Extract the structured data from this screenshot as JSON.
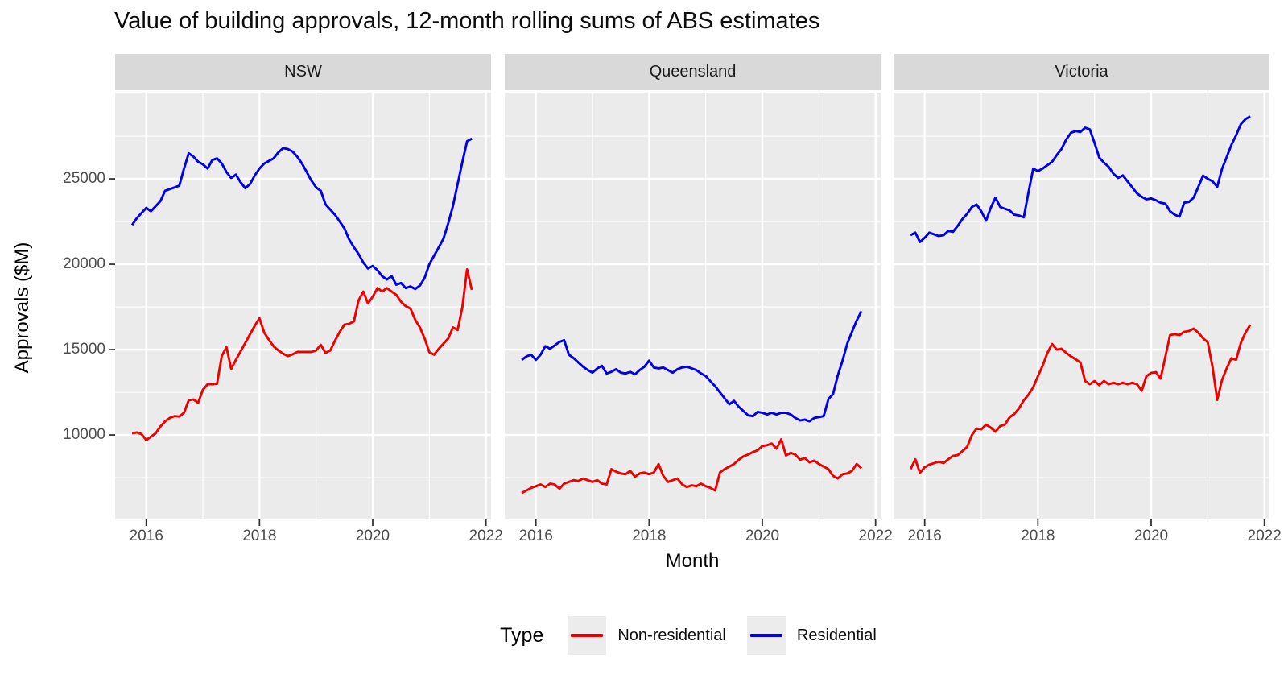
{
  "title": "Value of building approvals, 12-month rolling sums of ABS estimates",
  "chart_data": {
    "type": "line",
    "title": "Value of building approvals, 12-month rolling sums of ABS estimates",
    "xlabel": "Month",
    "ylabel": "Approvals ($M)",
    "facets": [
      "NSW",
      "Queensland",
      "Victoria"
    ],
    "grid": "on",
    "panel_background": "#ebebeb",
    "strip_background": "#d9d9d9",
    "gridline_color": "#ffffff",
    "legend": {
      "title": "Type",
      "position": "bottom",
      "entries": [
        {
          "label": "Non-residential",
          "color": "#ee0000"
        },
        {
          "label": "Residential",
          "color": "#0000e6"
        }
      ]
    },
    "x_axis": {
      "domain": [
        2015.45,
        2022.09
      ],
      "ticks": [
        2016,
        2018,
        2020,
        2022
      ],
      "tick_labels": [
        "2016",
        "2018",
        "2020",
        "2022"
      ],
      "minor_ticks": [
        2017,
        2019,
        2021
      ]
    },
    "y_axis": {
      "domain": [
        5050,
        30050
      ],
      "ticks": [
        10000,
        15000,
        20000,
        25000
      ],
      "tick_labels": [
        "10000",
        "15000",
        "20000",
        "25000"
      ],
      "minor_ticks": [
        7500,
        12500,
        17500,
        22500,
        27500
      ]
    },
    "x_start": 2015.75,
    "x_step": 0.0833333,
    "x_start_label": "Oct 2015",
    "x_end_label": "Oct 2021",
    "series": [
      {
        "facet": "NSW",
        "name": "Residential",
        "color": "#0000e6",
        "values": [
          22300,
          22700,
          23000,
          23300,
          23100,
          23400,
          23700,
          24300,
          24400,
          24500,
          24600,
          25600,
          26500,
          26300,
          26000,
          25850,
          25600,
          26100,
          26200,
          25900,
          25400,
          25050,
          25250,
          24800,
          24450,
          24700,
          25200,
          25600,
          25900,
          26050,
          26200,
          26550,
          26800,
          26750,
          26600,
          26300,
          25900,
          25400,
          24900,
          24500,
          24300,
          23500,
          23200,
          22900,
          22500,
          22100,
          21450,
          21000,
          20600,
          20100,
          19750,
          19900,
          19650,
          19300,
          19100,
          19300,
          18800,
          18900,
          18600,
          18700,
          18550,
          18750,
          19200,
          20000,
          20500,
          21000,
          21500,
          22400,
          23400,
          24700,
          26000,
          27200,
          27350
        ]
      },
      {
        "facet": "NSW",
        "name": "Non-residential",
        "color": "#ee0000",
        "values": [
          10100,
          10150,
          10050,
          9700,
          9900,
          10100,
          10500,
          10800,
          11000,
          11100,
          11080,
          11300,
          12030,
          12080,
          11890,
          12640,
          12970,
          12970,
          13000,
          14630,
          15140,
          13870,
          14400,
          14900,
          15400,
          15900,
          16400,
          16840,
          16000,
          15570,
          15190,
          14950,
          14760,
          14620,
          14720,
          14860,
          14860,
          14860,
          14860,
          14950,
          15280,
          14810,
          14950,
          15520,
          16040,
          16460,
          16510,
          16650,
          17880,
          18400,
          17700,
          18100,
          18600,
          18400,
          18600,
          18400,
          18200,
          17800,
          17550,
          17400,
          16750,
          16300,
          15650,
          14850,
          14700,
          15050,
          15350,
          15650,
          16300,
          16150,
          17500,
          19700,
          18500
        ]
      },
      {
        "facet": "Queensland",
        "name": "Residential",
        "color": "#0000e6",
        "values": [
          14400,
          14600,
          14700,
          14400,
          14700,
          15200,
          15050,
          15250,
          15450,
          15550,
          14700,
          14500,
          14250,
          14000,
          13800,
          13650,
          13900,
          14050,
          13600,
          13700,
          13850,
          13650,
          13600,
          13700,
          13550,
          13800,
          14000,
          14350,
          13950,
          13900,
          13950,
          13800,
          13650,
          13850,
          13950,
          14000,
          13900,
          13800,
          13600,
          13450,
          13150,
          12850,
          12500,
          12150,
          11800,
          12000,
          11650,
          11400,
          11150,
          11100,
          11350,
          11300,
          11200,
          11300,
          11200,
          11300,
          11300,
          11200,
          11000,
          10850,
          10900,
          10800,
          11000,
          11050,
          11100,
          12100,
          12400,
          13500,
          14350,
          15350,
          16050,
          16700,
          17250
        ]
      },
      {
        "facet": "Queensland",
        "name": "Non-residential",
        "color": "#ee0000",
        "values": [
          6600,
          6750,
          6900,
          7000,
          7100,
          6950,
          7150,
          7100,
          6850,
          7150,
          7250,
          7350,
          7300,
          7450,
          7350,
          7250,
          7350,
          7150,
          7100,
          8000,
          7850,
          7750,
          7700,
          7900,
          7550,
          7750,
          7800,
          7700,
          7800,
          8300,
          7600,
          7250,
          7350,
          7450,
          7100,
          6950,
          7050,
          7000,
          7150,
          7000,
          6900,
          6750,
          7800,
          8000,
          8150,
          8300,
          8550,
          8750,
          8850,
          9000,
          9100,
          9350,
          9400,
          9500,
          9200,
          9750,
          8800,
          8950,
          8850,
          8550,
          8650,
          8400,
          8500,
          8300,
          8150,
          8000,
          7600,
          7450,
          7700,
          7750,
          7900,
          8300,
          8050
        ]
      },
      {
        "facet": "Victoria",
        "name": "Residential",
        "color": "#0000e6",
        "values": [
          21700,
          21850,
          21300,
          21550,
          21850,
          21750,
          21650,
          21700,
          21950,
          21900,
          22250,
          22650,
          22950,
          23350,
          23500,
          23100,
          22550,
          23300,
          23900,
          23350,
          23250,
          23150,
          22900,
          22850,
          22750,
          24200,
          25600,
          25450,
          25600,
          25800,
          26000,
          26400,
          26750,
          27300,
          27700,
          27800,
          27750,
          28000,
          27900,
          27100,
          26250,
          25950,
          25700,
          25300,
          25050,
          25200,
          24850,
          24500,
          24150,
          23950,
          23800,
          23850,
          23750,
          23600,
          23550,
          23100,
          22900,
          22780,
          23600,
          23650,
          23900,
          24530,
          25190,
          25000,
          24860,
          24530,
          25570,
          26270,
          26980,
          27550,
          28200,
          28500,
          28660
        ]
      },
      {
        "facet": "Victoria",
        "name": "Non-residential",
        "color": "#ee0000",
        "values": [
          8000,
          8580,
          7780,
          8110,
          8260,
          8350,
          8440,
          8350,
          8580,
          8770,
          8820,
          9060,
          9300,
          10000,
          10380,
          10330,
          10610,
          10430,
          10190,
          10520,
          10610,
          11040,
          11230,
          11560,
          12030,
          12360,
          12790,
          13440,
          14060,
          14800,
          15330,
          15000,
          15050,
          14810,
          14600,
          14430,
          14250,
          13160,
          12970,
          13160,
          12920,
          13160,
          12970,
          13060,
          12970,
          13060,
          12970,
          13060,
          12970,
          12590,
          13440,
          13630,
          13680,
          13300,
          14570,
          15850,
          15900,
          15850,
          16040,
          16090,
          16230,
          15990,
          15660,
          15430,
          14000,
          12050,
          13200,
          13900,
          14500,
          14400,
          15400,
          16000,
          16450
        ]
      }
    ]
  }
}
